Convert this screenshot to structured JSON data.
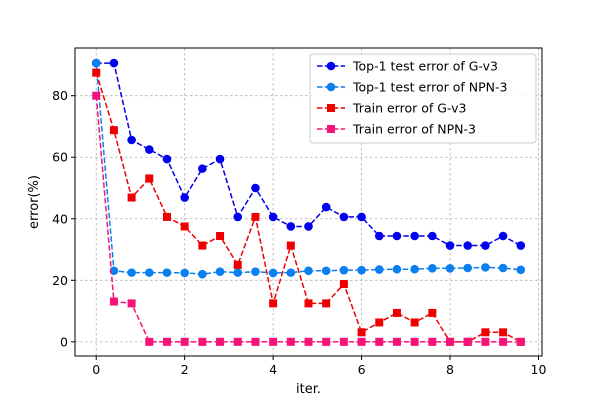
{
  "chart_data": {
    "type": "line",
    "title": "",
    "xlabel": "iter.",
    "ylabel": "error(%)",
    "xlim": [
      -0.48,
      10.08
    ],
    "ylim": [
      -4.6,
      95.5
    ],
    "xticks": [
      0,
      2,
      4,
      6,
      8,
      10
    ],
    "yticks": [
      0,
      20,
      40,
      60,
      80
    ],
    "grid": true,
    "legend_position": "top-right",
    "x": [
      0,
      0.4,
      0.8,
      1.2,
      1.6,
      2.0,
      2.4,
      2.8,
      3.2,
      3.6,
      4.0,
      4.4,
      4.8,
      5.2,
      5.6,
      6.0,
      6.4,
      6.8,
      7.2,
      7.6,
      8.0,
      8.4,
      8.8,
      9.2,
      9.6
    ],
    "series": [
      {
        "name": "Top-1 test error of G-v3",
        "color": "#0000ee",
        "marker": "circle",
        "values": [
          90.6,
          90.6,
          65.6,
          62.5,
          59.4,
          46.9,
          56.3,
          59.4,
          40.6,
          50.0,
          40.6,
          37.5,
          37.5,
          43.8,
          40.6,
          40.6,
          34.4,
          34.4,
          34.4,
          34.4,
          31.3,
          31.3,
          31.3,
          34.4,
          31.3
        ]
      },
      {
        "name": "Top-1 test error of NPN-3",
        "color": "#0a7fef",
        "marker": "circle",
        "values": [
          90.6,
          23.1,
          22.5,
          22.5,
          22.5,
          22.4,
          22.0,
          22.8,
          22.5,
          22.8,
          22.4,
          22.5,
          23.1,
          23.1,
          23.3,
          23.3,
          23.5,
          23.6,
          23.6,
          23.9,
          23.9,
          24.0,
          24.2,
          24.0,
          23.4
        ]
      },
      {
        "name": "Train error of G-v3",
        "color": "#ee0000",
        "marker": "square",
        "values": [
          87.5,
          68.8,
          46.9,
          53.1,
          40.6,
          37.5,
          31.3,
          34.4,
          25.0,
          40.6,
          12.5,
          31.3,
          12.5,
          12.5,
          18.8,
          3.1,
          6.3,
          9.4,
          6.3,
          9.4,
          0.0,
          0.0,
          3.1,
          3.1,
          0.0
        ]
      },
      {
        "name": "Train error of NPN-3",
        "color": "#f5137a",
        "marker": "square",
        "values": [
          80.0,
          13.1,
          12.5,
          0.0,
          0.0,
          0.0,
          0.0,
          0.0,
          0.0,
          0.0,
          0.0,
          0.0,
          0.0,
          0.0,
          0.0,
          0.0,
          0.0,
          0.0,
          0.0,
          0.0,
          0.0,
          0.0,
          0.0,
          0.0,
          0.0
        ]
      }
    ]
  }
}
